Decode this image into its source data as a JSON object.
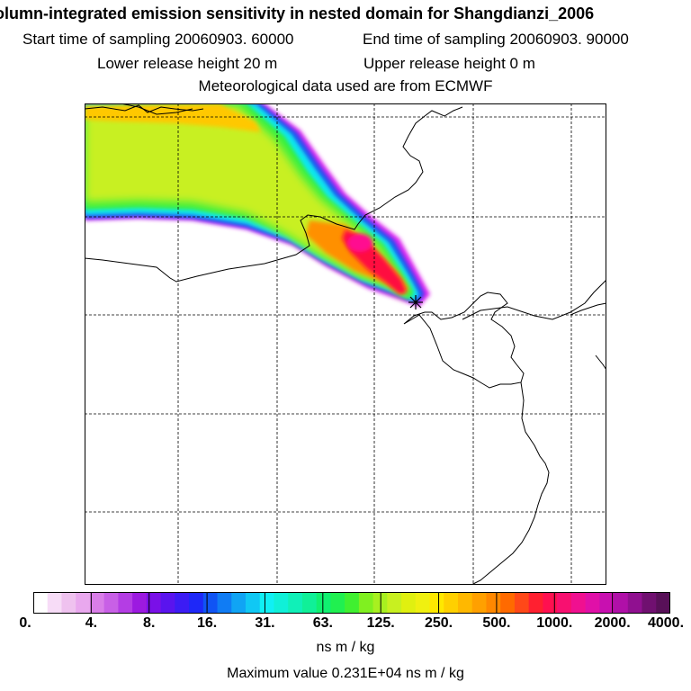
{
  "title": "olumn-integrated emission sensitivity in nested domain for Shangdianzi_2006",
  "sampling": {
    "start": "Start time of sampling 20060903. 60000",
    "end": "End time of sampling 20060903. 90000"
  },
  "release": {
    "lower": "Lower release height   20 m",
    "upper": "Upper release height    0 m"
  },
  "met": "Meteorological data used are from ECMWF",
  "colorbar": {
    "ticks": [
      "0.",
      "4.",
      "8.",
      "16.",
      "31.",
      "63.",
      "125.",
      "250.",
      "500.",
      "1000.",
      "2000.",
      "4000."
    ],
    "colors": [
      "#ffffff",
      "#f7dcf7",
      "#efc2ef",
      "#e9a8ee",
      "#d97ee8",
      "#c860e6",
      "#b43de4",
      "#9c1ae0",
      "#7a10e8",
      "#5a14ee",
      "#3c1cf4",
      "#1e28f8",
      "#1054f4",
      "#107cf4",
      "#10a4f4",
      "#10c8f4",
      "#10f0f4",
      "#10f0d8",
      "#10f0b8",
      "#10f098",
      "#10f070",
      "#20f050",
      "#40f030",
      "#80f020",
      "#a8f020",
      "#c8f020",
      "#e0f010",
      "#f0f010",
      "#ffe800",
      "#ffd000",
      "#ffb800",
      "#ffa000",
      "#ff8800",
      "#ff6a00",
      "#ff4818",
      "#ff2030",
      "#ff1050",
      "#f81070",
      "#f01090",
      "#e010a8",
      "#c810b0",
      "#b010a8",
      "#901090",
      "#701070",
      "#581058"
    ],
    "units": "ns m / kg"
  },
  "max_value": "Maximum value  0.231E+04 ns m / kg",
  "receptor": "Shangdianzi"
}
